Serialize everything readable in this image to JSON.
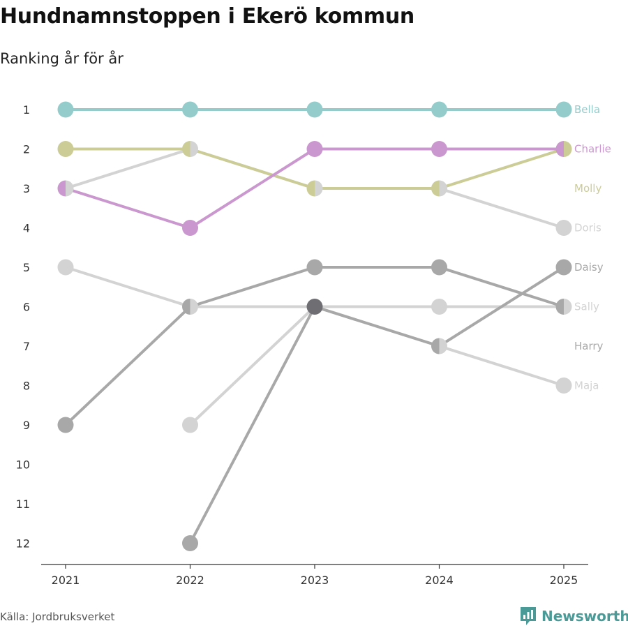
{
  "title": "Hundnamnstoppen i Ekerö kommun",
  "subtitle": "Ranking år för år",
  "source": "Källa: Jordbruksverket",
  "brand": "Newsworthy",
  "colors": {
    "Bella": "#93cccb",
    "Charlie": "#cb97cf",
    "Molly": "#cbcc96",
    "Doris": "#d3d3d3",
    "Daisy": "#a8a8a8",
    "Sally": "#d3d3d3",
    "Harry": "#a8a8a8",
    "Maja": "#d3d3d3",
    "overlap": "#6e6e73",
    "brand": "#4a9a98",
    "axis": "#333333"
  },
  "chart_data": {
    "type": "line",
    "subtype": "bump",
    "title": "Hundnamnstoppen i Ekerö kommun",
    "subtitle": "Ranking år för år",
    "x": [
      "2021",
      "2022",
      "2023",
      "2024",
      "2025"
    ],
    "y_ticks": [
      "1",
      "2",
      "3",
      "4",
      "5",
      "6",
      "7",
      "8",
      "9",
      "10",
      "11",
      "12"
    ],
    "ylim": [
      1,
      12
    ],
    "y_reversed": true,
    "series": [
      {
        "name": "Doris",
        "values": [
          5,
          6,
          6,
          7,
          8
        ],
        "label_rank": 4
      },
      {
        "name": "Maja",
        "values": [
          null,
          9,
          6,
          6,
          6
        ],
        "label_rank": 8
      },
      {
        "name": "Sally",
        "values": [
          3,
          2,
          3,
          3,
          4
        ],
        "label_rank": 6
      },
      {
        "name": "Harry",
        "values": [
          null,
          12,
          6,
          7,
          5
        ],
        "label_rank": 7
      },
      {
        "name": "Daisy",
        "values": [
          9,
          6,
          5,
          5,
          6
        ],
        "label_rank": 5
      },
      {
        "name": "Molly",
        "values": [
          2,
          2,
          3,
          3,
          2
        ],
        "label_rank": 3
      },
      {
        "name": "Charlie",
        "values": [
          3,
          4,
          2,
          2,
          2
        ],
        "label_rank": 2
      },
      {
        "name": "Bella",
        "values": [
          1,
          1,
          1,
          1,
          1
        ],
        "label_rank": 1
      }
    ]
  }
}
